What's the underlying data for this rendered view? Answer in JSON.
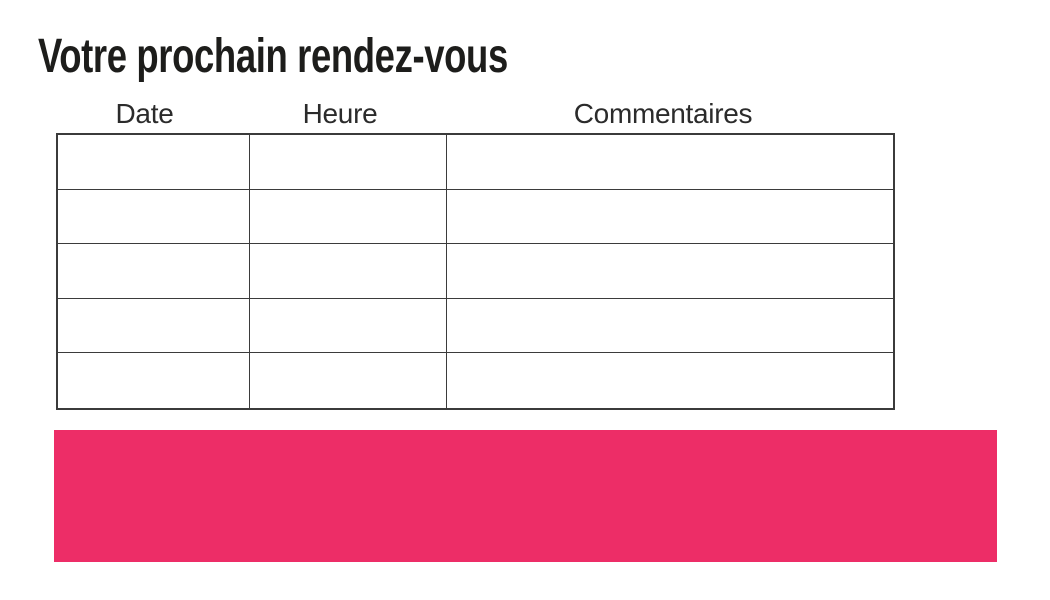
{
  "page": {
    "title": "Votre prochain rendez-vous"
  },
  "table": {
    "headers": [
      {
        "label": "Date"
      },
      {
        "label": "Heure"
      },
      {
        "label": "Commentaires"
      }
    ],
    "rows": [
      [
        "",
        "",
        ""
      ],
      [
        "",
        "",
        ""
      ],
      [
        "",
        "",
        ""
      ],
      [
        "",
        "",
        ""
      ],
      [
        "",
        "",
        ""
      ]
    ],
    "border_color": "#3b3b3b"
  },
  "banner": {
    "color": "#ed2d67"
  },
  "colors": {
    "title_text": "#1d1d1b",
    "header_text": "#2b2b2b",
    "accent_pink": "#ed2d67",
    "background": "#ffffff"
  }
}
